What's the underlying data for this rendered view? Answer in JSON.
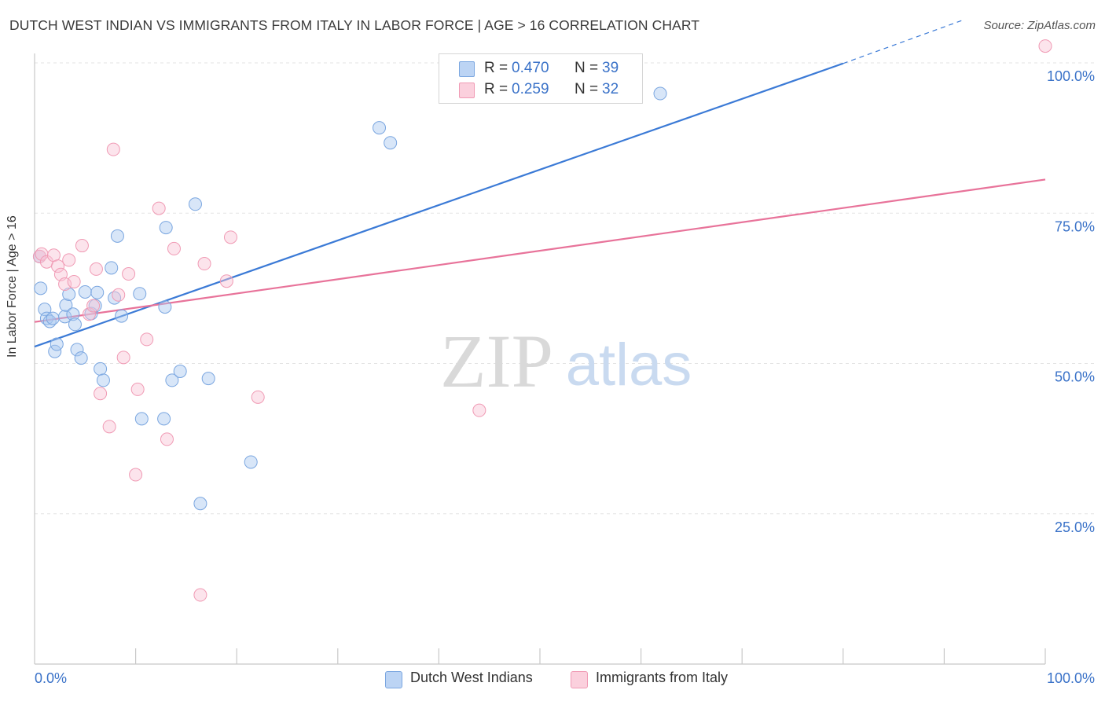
{
  "header": {
    "title": "DUTCH WEST INDIAN VS IMMIGRANTS FROM ITALY IN LABOR FORCE | AGE > 16 CORRELATION CHART",
    "source": "Source: ZipAtlas.com"
  },
  "watermark": {
    "zip": "ZIP",
    "atlas": "atlas"
  },
  "legend": {
    "items": [
      {
        "r_label": "R =",
        "r_value": "0.470",
        "n_label": "N =",
        "n_value": "39",
        "color": "#a8c8f0",
        "border": "#7aa6e0"
      },
      {
        "r_label": "R =",
        "r_value": "0.259",
        "n_label": "N =",
        "n_value": "32",
        "color": "#f9c4d4",
        "border": "#f09ab4"
      }
    ]
  },
  "bottom_legend": {
    "series1": "Dutch West Indians",
    "series2": "Immigrants from Italy"
  },
  "colors": {
    "blue_fill": "rgba(168,200,240,0.45)",
    "blue_stroke": "#7aa6e0",
    "blue_line": "#3b7ad6",
    "pink_fill": "rgba(249,196,212,0.45)",
    "pink_stroke": "#f09ab4",
    "pink_line": "#e8739a",
    "axis_text": "#3a72c8",
    "grid": "#e3e3e3"
  },
  "chart_data": {
    "type": "scatter",
    "title": "DUTCH WEST INDIAN VS IMMIGRANTS FROM ITALY IN LABOR FORCE | AGE > 16 CORRELATION CHART",
    "xlabel": "",
    "ylabel": "In Labor Force | Age > 16",
    "xlim": [
      0,
      100
    ],
    "ylim": [
      0,
      100
    ],
    "x_ticks_labels": [
      "0.0%",
      "100.0%"
    ],
    "y_ticks": [
      25,
      50,
      75,
      100
    ],
    "y_ticks_labels": [
      "25.0%",
      "50.0%",
      "75.0%",
      "100.0%"
    ],
    "grid": true,
    "series": [
      {
        "name": "Dutch West Indians",
        "r": 0.47,
        "n": 39,
        "trend": {
          "x0": 0,
          "y0": 52.8,
          "x1": 80,
          "y1": 99.9,
          "dash_to_x": 92,
          "dash_to_y": 107.2
        },
        "points": [
          [
            0.5,
            67.8
          ],
          [
            0.6,
            62.5
          ],
          [
            1.0,
            59.0
          ],
          [
            1.2,
            57.5
          ],
          [
            1.5,
            57.0
          ],
          [
            1.8,
            57.5
          ],
          [
            2.0,
            52.0
          ],
          [
            2.2,
            53.2
          ],
          [
            3.0,
            57.8
          ],
          [
            3.1,
            59.7
          ],
          [
            3.4,
            61.5
          ],
          [
            3.8,
            58.2
          ],
          [
            4.0,
            56.5
          ],
          [
            4.2,
            52.3
          ],
          [
            4.6,
            50.9
          ],
          [
            5.0,
            61.9
          ],
          [
            5.6,
            58.3
          ],
          [
            6.0,
            59.6
          ],
          [
            6.2,
            61.8
          ],
          [
            6.5,
            49.1
          ],
          [
            6.8,
            47.2
          ],
          [
            7.6,
            65.9
          ],
          [
            7.9,
            60.9
          ],
          [
            8.2,
            71.2
          ],
          [
            8.6,
            57.9
          ],
          [
            10.4,
            61.6
          ],
          [
            10.6,
            40.8
          ],
          [
            12.8,
            40.8
          ],
          [
            12.9,
            59.4
          ],
          [
            13.0,
            72.6
          ],
          [
            13.6,
            47.2
          ],
          [
            14.4,
            48.7
          ],
          [
            15.9,
            76.5
          ],
          [
            16.4,
            26.7
          ],
          [
            17.2,
            47.5
          ],
          [
            21.4,
            33.6
          ],
          [
            34.1,
            89.2
          ],
          [
            35.2,
            86.7
          ],
          [
            61.9,
            94.9
          ]
        ]
      },
      {
        "name": "Immigrants from Italy",
        "r": 0.259,
        "n": 32,
        "trend": {
          "x0": 0,
          "y0": 56.9,
          "x1": 100,
          "y1": 80.6
        },
        "points": [
          [
            0.5,
            67.8
          ],
          [
            0.7,
            68.2
          ],
          [
            1.2,
            66.9
          ],
          [
            1.9,
            68.0
          ],
          [
            2.3,
            66.2
          ],
          [
            2.6,
            64.8
          ],
          [
            3.0,
            63.2
          ],
          [
            3.4,
            67.2
          ],
          [
            3.9,
            63.6
          ],
          [
            4.7,
            69.6
          ],
          [
            5.4,
            58.2
          ],
          [
            5.8,
            59.6
          ],
          [
            6.1,
            65.7
          ],
          [
            6.5,
            45.0
          ],
          [
            7.4,
            39.5
          ],
          [
            7.8,
            85.6
          ],
          [
            8.3,
            61.4
          ],
          [
            8.8,
            51.0
          ],
          [
            9.3,
            64.9
          ],
          [
            10.0,
            31.5
          ],
          [
            10.2,
            45.7
          ],
          [
            11.1,
            54.0
          ],
          [
            12.3,
            75.8
          ],
          [
            13.1,
            37.4
          ],
          [
            13.8,
            69.1
          ],
          [
            16.4,
            11.5
          ],
          [
            16.8,
            66.6
          ],
          [
            19.0,
            63.7
          ],
          [
            19.4,
            71.0
          ],
          [
            22.1,
            44.4
          ],
          [
            44.0,
            42.2
          ],
          [
            100.0,
            102.8
          ]
        ]
      }
    ]
  }
}
